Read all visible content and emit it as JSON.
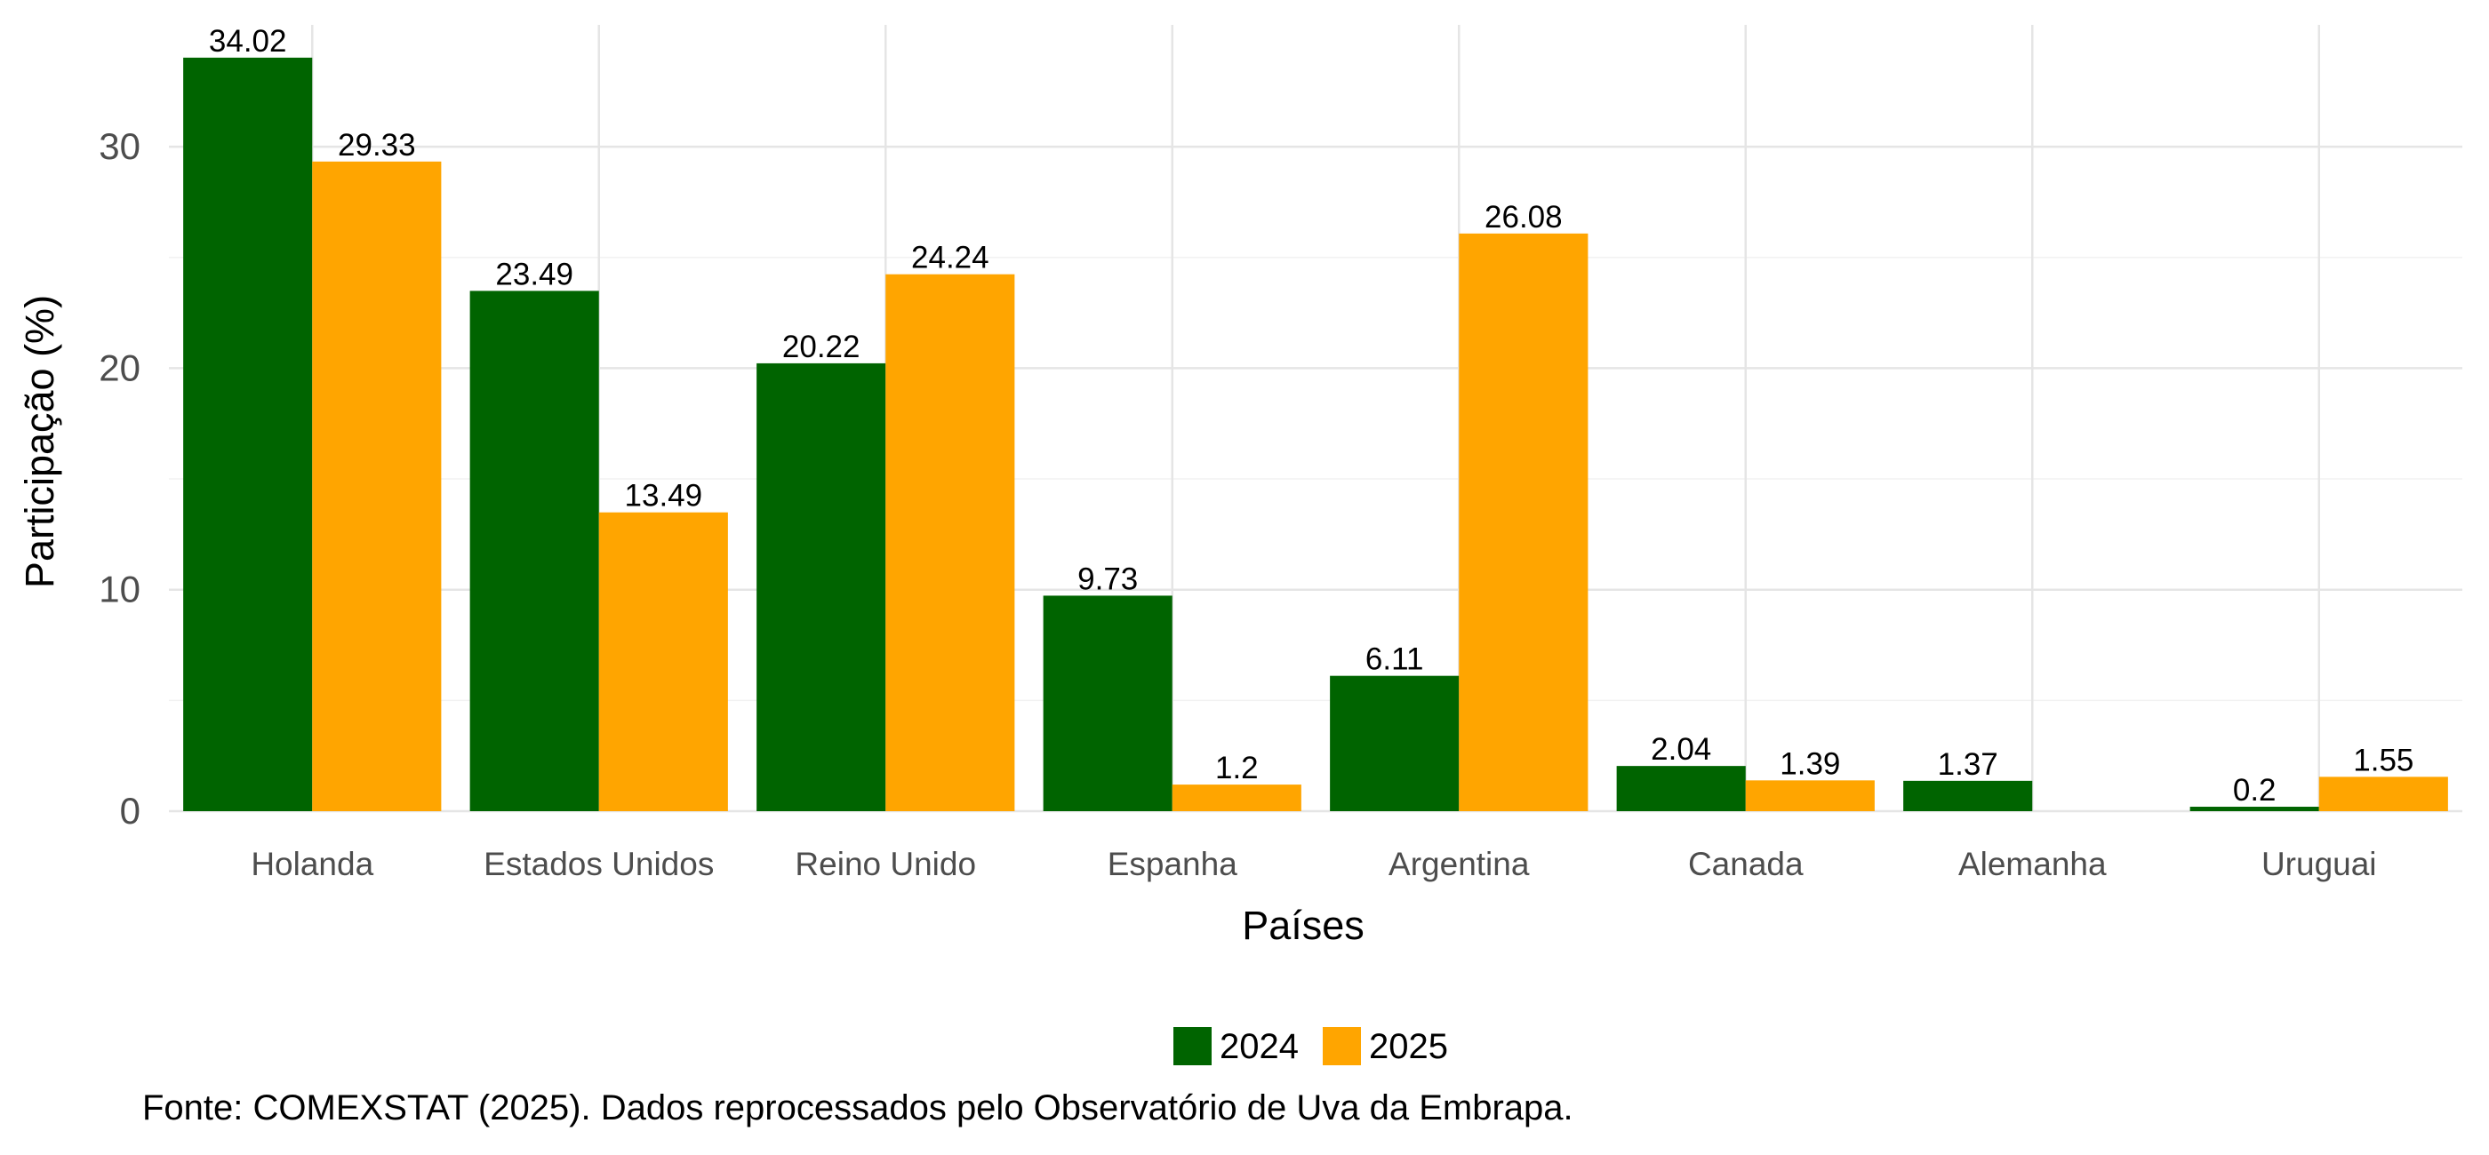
{
  "chart_data": {
    "type": "bar",
    "title": "",
    "xlabel": "Países",
    "ylabel": "Participação (%)",
    "ylim": [
      0,
      35.5
    ],
    "yticks": [
      0,
      10,
      20,
      30
    ],
    "grid": true,
    "legend_position": "bottom",
    "categories": [
      "Holanda",
      "Estados Unidos",
      "Reino Unido",
      "Espanha",
      "Argentina",
      "Canada",
      "Alemanha",
      "Uruguai"
    ],
    "series": [
      {
        "name": "2024",
        "color": "#006400",
        "values": [
          34.02,
          23.49,
          20.22,
          9.73,
          6.11,
          2.04,
          1.37,
          0.2
        ],
        "labels": [
          "34.02",
          "23.49",
          "20.22",
          "9.73",
          "6.11",
          "2.04",
          "1.37",
          "0.2"
        ]
      },
      {
        "name": "2025",
        "color": "#FFA500",
        "values": [
          29.33,
          13.49,
          24.24,
          1.2,
          26.08,
          1.39,
          null,
          1.55
        ],
        "labels": [
          "29.33",
          "13.49",
          "24.24",
          "1.2",
          "26.08",
          "1.39",
          null,
          "1.55"
        ]
      }
    ],
    "caption": "Fonte: COMEXSTAT (2025). Dados reprocessados pelo Observatório de Uva da Embrapa."
  }
}
